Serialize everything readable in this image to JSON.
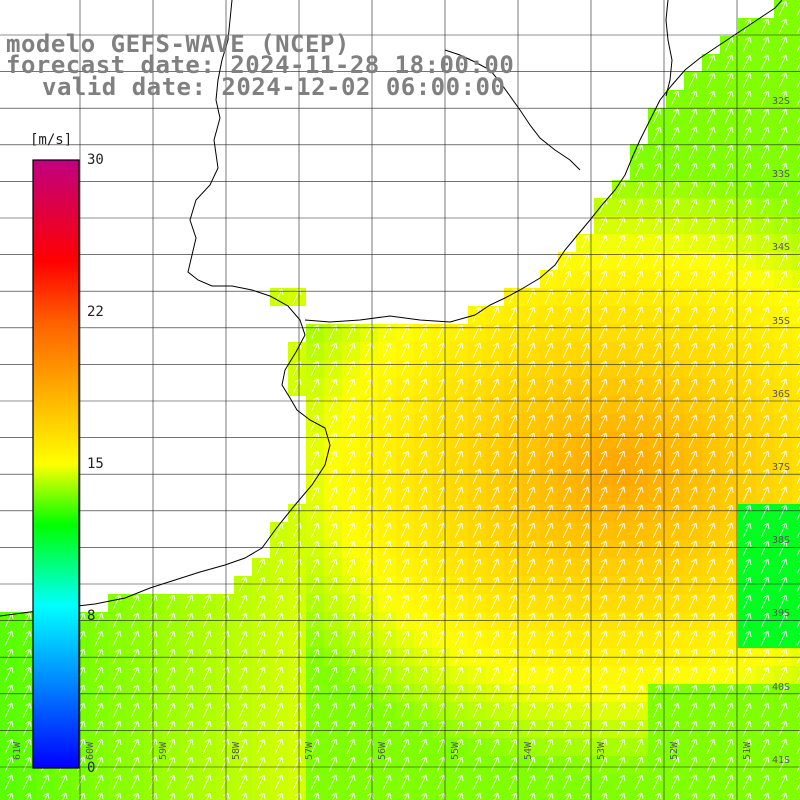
{
  "title": {
    "line1": "modelo GEFS-WAVE (NCEP)",
    "line2": "forecast date: 2024-11-28 18:00:00",
    "line3": "valid date: 2024-12-02 06:00:00"
  },
  "colorbar": {
    "unit": "[m/s]",
    "ticks": [
      "30",
      "22",
      "15",
      "8",
      "0"
    ],
    "tick_values": [
      30,
      22,
      15,
      8,
      0
    ],
    "min": 0,
    "max": 30,
    "colors": [
      "#0000ff",
      "#00ffff",
      "#00ff00",
      "#ffff00",
      "#ff8000",
      "#ff0000",
      "#c00080"
    ]
  },
  "lat_labels": [
    "32S",
    "33S",
    "34S",
    "35S",
    "36S",
    "37S",
    "38S",
    "39S",
    "40S",
    "41S"
  ],
  "lon_labels": [
    "61W",
    "60W",
    "59W",
    "58W",
    "57W",
    "56W",
    "55W",
    "54W",
    "53W",
    "52W",
    "51W"
  ],
  "field": {
    "variable": "wind speed",
    "units": "m/s",
    "description": "surface wind speed shading with direction arrows from the north-northeast",
    "land_color": "#ffffff",
    "coast_color": "#000000",
    "grid_color": "#000000"
  }
}
